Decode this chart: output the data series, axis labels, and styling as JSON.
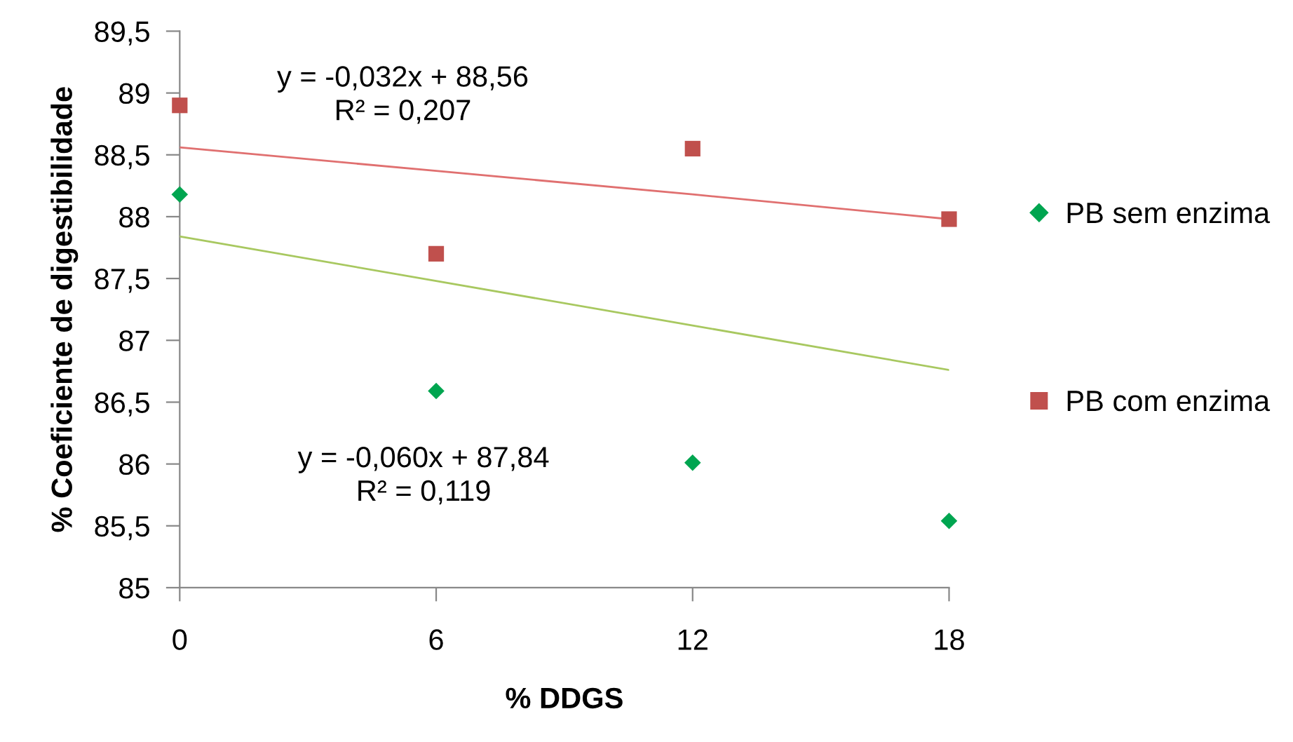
{
  "chart_data": {
    "type": "scatter",
    "xlabel": "% DDGS",
    "ylabel": "% Coeficiente de digestibilidade",
    "x": [
      0,
      6,
      12,
      18
    ],
    "series": [
      {
        "name": "PB sem enzima",
        "color": "#00a550",
        "marker": "diamond",
        "values": [
          88.18,
          86.59,
          86.01,
          85.54
        ]
      },
      {
        "name": "PB com enzima",
        "color": "#c0504d",
        "marker": "square",
        "values": [
          88.9,
          87.7,
          88.55,
          87.98
        ]
      },
      {
        "type": "line",
        "color": "#e07070",
        "marker": "none",
        "line_style": "solid",
        "values": [
          88.56,
          88.37,
          88.18,
          87.98
        ]
      },
      {
        "type": "line",
        "color": "#a8c860",
        "marker": "none",
        "line_style": "solid",
        "values": [
          87.84,
          87.48,
          87.12,
          86.76
        ]
      }
    ],
    "annotations": [
      "y = -0,032x + 88,56\nR² = 0,207",
      "y = -0,060x + 87,84\nR² = 0,119"
    ],
    "xlim": [
      0,
      18
    ],
    "xticks": [
      0,
      6,
      12,
      18
    ],
    "ylim": [
      85,
      89.5
    ],
    "yticks": [
      {
        "value": 85,
        "label": "85"
      },
      {
        "value": 85.5,
        "label": "85,5"
      },
      {
        "value": 86,
        "label": "86"
      },
      {
        "value": 86.5,
        "label": "86,5"
      },
      {
        "value": 87,
        "label": "87"
      },
      {
        "value": 87.5,
        "label": "87,5"
      },
      {
        "value": 88,
        "label": "88"
      },
      {
        "value": 88.5,
        "label": "88,5"
      },
      {
        "value": 89,
        "label": "89"
      },
      {
        "value": 89.5,
        "label": "89,5"
      }
    ],
    "grid": false,
    "legend": "right"
  }
}
